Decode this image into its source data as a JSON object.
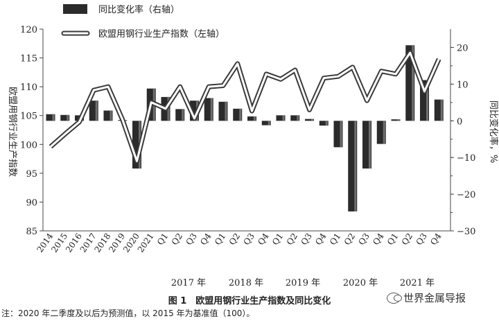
{
  "legend": {
    "bar_label": "同比变化率（右轴）",
    "line_label": "欧盟用钢行业生产指数（左轴）"
  },
  "axes": {
    "left_title": "欧盟用钢行业生产指数",
    "right_title": "同比变化率，%",
    "left_ticks": [
      "120",
      "115",
      "110",
      "105",
      "100",
      "95",
      "90",
      "85"
    ],
    "right_ticks": [
      "20",
      "10",
      "0",
      "−10",
      "−20",
      "−30"
    ]
  },
  "x_groups": {
    "y2017": "2017 年",
    "y2018": "2018 年",
    "y2019": "2019 年",
    "y2020": "2020 年",
    "y2021": "2021 年"
  },
  "caption": "图 1　欧盟用钢行业生产指数及同比变化",
  "note": "注：2020 年二季度及以后为预测值，以 2015 年为基准值（100）。",
  "watermark": "世界金属导报",
  "colors": {
    "bar": "#2b2b2b",
    "bar_highlight": "#6e6e6e",
    "line_outer": "#3a3a3a",
    "line_inner": "#ffffff"
  },
  "chart_data": {
    "type": "bar+line",
    "categories": [
      "2014",
      "2015",
      "2016",
      "2017",
      "2018",
      "2019",
      "2020",
      "2021",
      "Q1",
      "Q2",
      "Q3",
      "Q4",
      "Q1",
      "Q2",
      "Q3",
      "Q4",
      "Q1",
      "Q2",
      "Q3",
      "Q4",
      "Q1",
      "Q2",
      "Q3",
      "Q4",
      "Q1",
      "Q2",
      "Q3",
      "Q4"
    ],
    "series": [
      {
        "name": "同比变化率（右轴）",
        "axis": "right",
        "kind": "bar",
        "values": [
          1.8,
          1.6,
          1.5,
          5.5,
          2.8,
          0.2,
          -13,
          8.8,
          6.5,
          3.2,
          5.5,
          6.2,
          5.2,
          3.3,
          1.2,
          -1.2,
          1.5,
          1.5,
          0.5,
          -1.3,
          -7.2,
          -24.7,
          -13,
          -6.3,
          0.4,
          20.6,
          11.1,
          5.8
        ]
      },
      {
        "name": "欧盟用钢行业生产指数（左轴）",
        "axis": "left",
        "kind": "line",
        "values": [
          99.6,
          101.8,
          103.9,
          109.4,
          110.0,
          104.3,
          97.1,
          107.3,
          106.2,
          110.0,
          104.5,
          110.0,
          110.2,
          114.0,
          105.8,
          112.2,
          111.3,
          112.9,
          106.0,
          111.5,
          111.8,
          113.4,
          107.6,
          112.7,
          112.2,
          115.9,
          109.2,
          114.8
        ]
      }
    ],
    "ylim_left": [
      85,
      120
    ],
    "ylim_right": [
      -30,
      25
    ],
    "grid": false
  }
}
